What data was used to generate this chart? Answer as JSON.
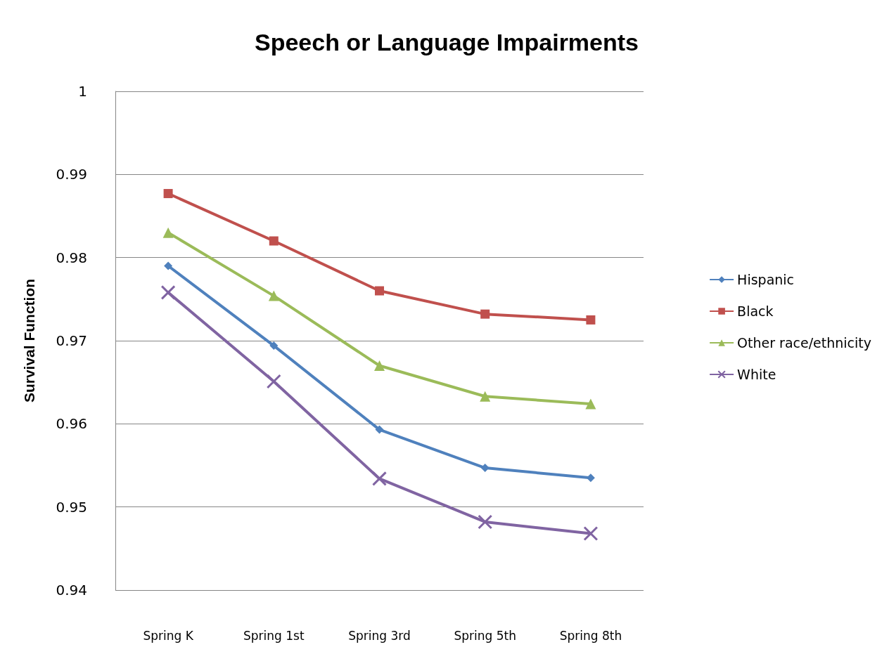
{
  "chart_data": {
    "type": "line",
    "title": "Speech or Language Impairments",
    "ylabel": "Survival Function",
    "categories": [
      "Spring K",
      "Spring 1st",
      "Spring 3rd",
      "Spring 5th",
      "Spring 8th"
    ],
    "ylim": [
      0.94,
      1
    ],
    "yticks": [
      0.94,
      0.95,
      0.96,
      0.97,
      0.98,
      0.99,
      1
    ],
    "grid": "y",
    "legend": "right",
    "series": [
      {
        "name": "Hispanic",
        "color": "#4f81bd",
        "marker": "diamond",
        "values": [
          0.979,
          0.9694,
          0.9593,
          0.9547,
          0.9535
        ]
      },
      {
        "name": "Black",
        "color": "#c0504d",
        "marker": "square",
        "values": [
          0.9877,
          0.982,
          0.976,
          0.9732,
          0.9725
        ]
      },
      {
        "name": "Other race/ethnicity",
        "color": "#9bbb59",
        "marker": "triangle",
        "values": [
          0.983,
          0.9754,
          0.967,
          0.9633,
          0.9624
        ]
      },
      {
        "name": "White",
        "color": "#8064a2",
        "marker": "cross",
        "values": [
          0.9758,
          0.9651,
          0.9534,
          0.9482,
          0.9468
        ]
      }
    ]
  }
}
